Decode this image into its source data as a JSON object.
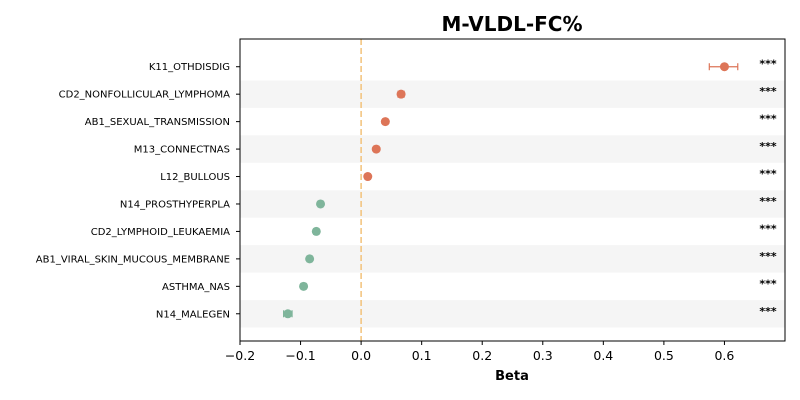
{
  "chart_data": {
    "type": "scatter",
    "title": "M-VLDL-FC%",
    "xlabel": "Beta",
    "ylabel": "",
    "xlim": [
      -0.2,
      0.7
    ],
    "xticks": [
      -0.2,
      -0.1,
      0.0,
      0.1,
      0.2,
      0.3,
      0.4,
      0.5,
      0.6
    ],
    "xtick_labels": [
      "−0.2",
      "−0.1",
      "0.0",
      "0.1",
      "0.2",
      "0.3",
      "0.4",
      "0.5",
      "0.6"
    ],
    "reference_line": 0.0,
    "grid": false,
    "categories": [
      "K11_OTHDISDIG",
      "CD2_NONFOLLICULAR_LYMPHOMA",
      "AB1_SEXUAL_TRANSMISSION",
      "M13_CONNECTNAS",
      "L12_BULLOUS",
      "N14_PROSTHYPERPLA",
      "CD2_LYMPHOID_LEUKAEMIA",
      "AB1_VIRAL_SKIN_MUCOUS_MEMBRANE",
      "ASTHMA_NAS",
      "N14_MALEGEN"
    ],
    "beta": [
      0.6,
      0.066,
      0.04,
      0.025,
      0.011,
      -0.067,
      -0.074,
      -0.085,
      -0.095,
      -0.121
    ],
    "ci_low": [
      0.575,
      0.061,
      0.036,
      0.021,
      0.007,
      -0.071,
      -0.078,
      -0.089,
      -0.099,
      -0.128
    ],
    "ci_high": [
      0.622,
      0.071,
      0.044,
      0.029,
      0.015,
      -0.063,
      -0.07,
      -0.081,
      -0.091,
      -0.114
    ],
    "significance": [
      "***",
      "***",
      "***",
      "***",
      "***",
      "***",
      "***",
      "***",
      "***",
      "***"
    ],
    "colors": {
      "positive": "#dd7558",
      "negative": "#7fb59b",
      "reference_line": "#f2c27a",
      "band": "#f5f5f5"
    }
  }
}
